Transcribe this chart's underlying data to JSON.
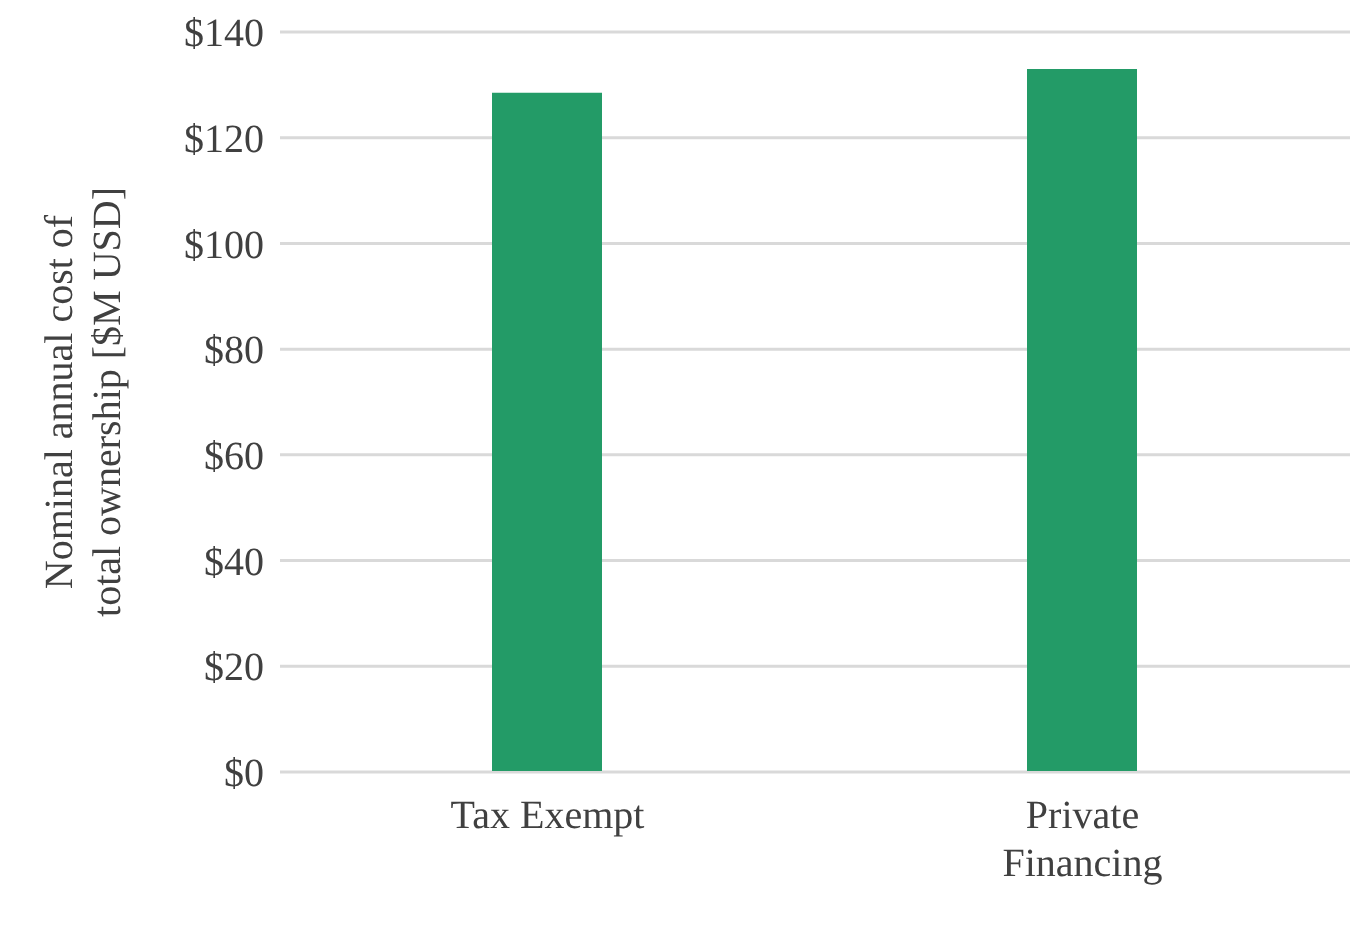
{
  "chart_data": {
    "type": "bar",
    "ylabel": "Nominal annual cost of total ownership [$M USD]",
    "categories": [
      "Tax Exempt",
      "Private Financing"
    ],
    "values": [
      128.5,
      133
    ],
    "color": "#239b67",
    "ylim": [
      0,
      140
    ],
    "yticks": [
      {
        "value": 0,
        "label": "$0"
      },
      {
        "value": 20,
        "label": "$20"
      },
      {
        "value": 40,
        "label": "$40"
      },
      {
        "value": 60,
        "label": "$60"
      },
      {
        "value": 80,
        "label": "$80"
      },
      {
        "value": 100,
        "label": "$100"
      },
      {
        "value": 120,
        "label": "$120"
      },
      {
        "value": 140,
        "label": "$140"
      }
    ],
    "grid": "y"
  }
}
